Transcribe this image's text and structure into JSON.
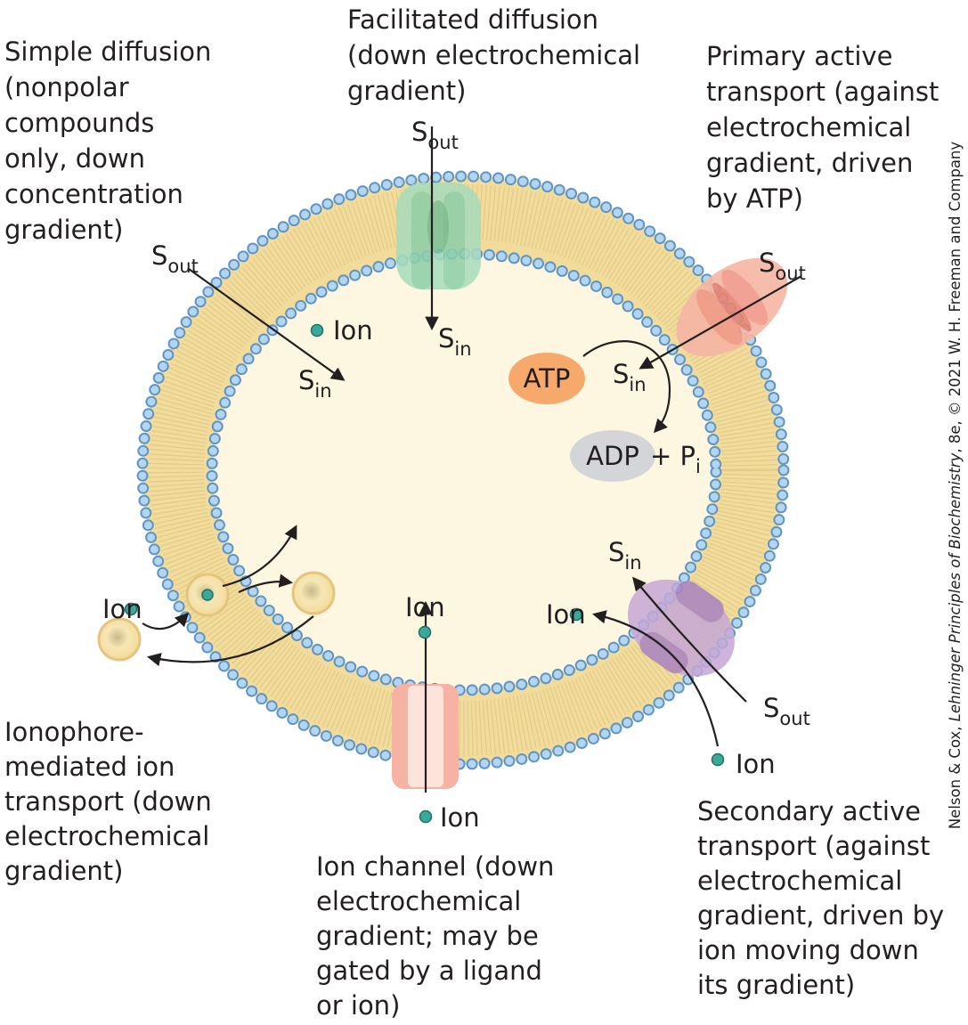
{
  "captions": {
    "simple_diffusion": [
      "Simple diffusion",
      "(nonpolar",
      "compounds",
      "only, down",
      "concentration",
      "gradient)"
    ],
    "facilitated_diffusion": [
      "Facilitated diffusion",
      "(down electrochemical",
      "gradient)"
    ],
    "primary_active_transport": [
      "Primary active",
      "transport (against",
      "electrochemical",
      "gradient, driven",
      "by ATP)"
    ],
    "ionophore_transport": [
      "Ionophore-",
      "mediated ion",
      "transport (down",
      "electrochemical",
      "gradient)"
    ],
    "ion_channel": [
      "Ion channel (down",
      "electrochemical",
      "gradient; may be",
      "gated by a ligand",
      "or ion)"
    ],
    "secondary_active_transport": [
      "Secondary active",
      "transport (against",
      "electrochemical",
      "gradient, driven by",
      "ion moving down",
      "its gradient)"
    ]
  },
  "labels": {
    "simple_s_out": {
      "main": "S",
      "sub": "out"
    },
    "simple_s_in": {
      "main": "S",
      "sub": "in"
    },
    "facilitated_s_out": {
      "main": "S",
      "sub": "out"
    },
    "facilitated_s_in": {
      "main": "S",
      "sub": "in"
    },
    "primary_s_out": {
      "main": "S",
      "sub": "out"
    },
    "primary_s_in": {
      "main": "S",
      "sub": "in"
    },
    "atp": "ATP",
    "adp": "ADP",
    "pi": {
      "main": "+ P",
      "sub": "i"
    },
    "ionophore_ion_in": "Ion",
    "ionophore_ion_out": "Ion",
    "channel_ion_in": "Ion",
    "channel_ion_out": "Ion",
    "secondary_ion_in": "Ion",
    "secondary_ion_out": "Ion",
    "secondary_s_in": {
      "main": "S",
      "sub": "in"
    },
    "secondary_s_out": {
      "main": "S",
      "sub": "out"
    }
  },
  "credit": {
    "before": "Nelson & Cox, ",
    "italic": "Lehninger Principles of Biochemistry",
    "after": ", 8e, © 2021 W. H. Freeman and Company"
  }
}
